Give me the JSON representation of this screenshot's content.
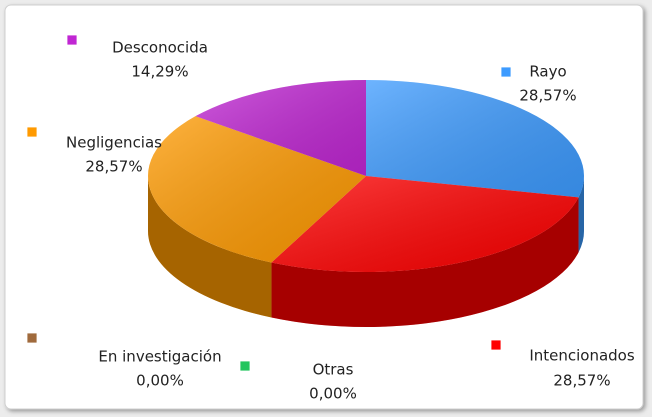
{
  "chart_data": {
    "type": "pie",
    "categories": [
      "Rayo",
      "Intencionados",
      "Otras",
      "En investigación",
      "Negligencias",
      "Desconocida"
    ],
    "values": [
      28.57,
      28.57,
      0,
      0,
      28.57,
      14.29
    ],
    "value_labels": [
      "28,57%",
      "28,57%",
      "0,00%",
      "0,00%",
      "28,57%",
      "14,29%"
    ],
    "colors": [
      "#3d9bff",
      "#ff0000",
      "#22c55e",
      "#a06a3c",
      "#ff9a00",
      "#c026d3"
    ]
  }
}
